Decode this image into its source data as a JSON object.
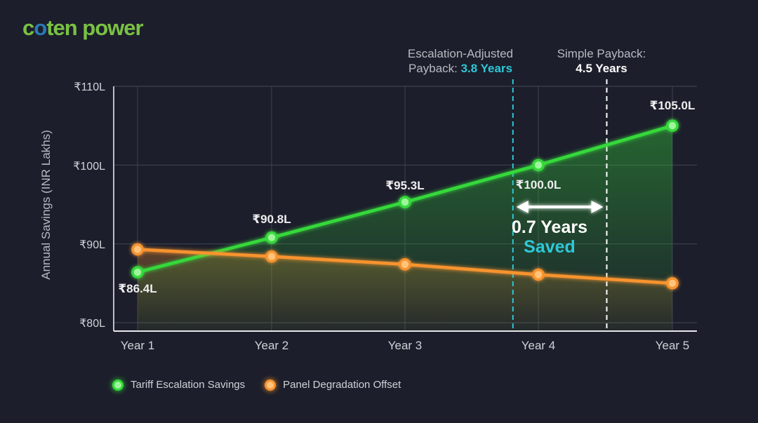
{
  "brand": {
    "logo_text_a": "c",
    "logo_text_o": "o",
    "logo_text_rest": "ten power"
  },
  "annotations": {
    "escalation_line1": "Escalation-Adjusted",
    "escalation_line2_prefix": "Payback: ",
    "escalation_value": "3.8 Years",
    "simple_line1": "Simple Payback:",
    "simple_value": "4.5 Years",
    "saved_years": "0.7 Years",
    "saved_word": "Saved"
  },
  "colors": {
    "background": "#1c1e2b",
    "green": "#35d93a",
    "orange": "#f7932e",
    "cyan": "#2ec8d8",
    "grid": "#3d404e"
  },
  "chart_data": {
    "type": "line",
    "title": "",
    "xlabel": "",
    "ylabel": "Annual Savings (INR Lakhs)",
    "categories": [
      "Year 1",
      "Year 2",
      "Year 3",
      "Year 4",
      "Year 5"
    ],
    "y_ticks": [
      "₹80L",
      "₹90L",
      "₹100L",
      "₹110L"
    ],
    "y_tick_values": [
      80,
      90,
      100,
      110
    ],
    "ylim": [
      80,
      110
    ],
    "grid": true,
    "legend_position": "bottom-left",
    "series": [
      {
        "name": "Tariff Escalation Savings",
        "color": "#35d93a",
        "values": [
          86.4,
          90.8,
          95.3,
          100.0,
          105.0
        ],
        "labels": [
          "₹86.4L",
          "₹90.8L",
          "₹95.3L",
          "₹100.0L",
          "₹105.0L"
        ]
      },
      {
        "name": "Panel Degradation Offset",
        "color": "#f7932e",
        "values": [
          89.3,
          88.4,
          87.4,
          86.1,
          85.0
        ]
      }
    ],
    "reference_lines": [
      {
        "x": 3.8,
        "label": "Escalation-Adjusted Payback: 3.8 Years",
        "color": "#2ec8d8",
        "style": "dashed"
      },
      {
        "x": 4.5,
        "label": "Simple Payback: 4.5 Years",
        "color": "#ffffff",
        "style": "dashed"
      }
    ],
    "annotations": [
      "0.7 Years Saved"
    ]
  }
}
